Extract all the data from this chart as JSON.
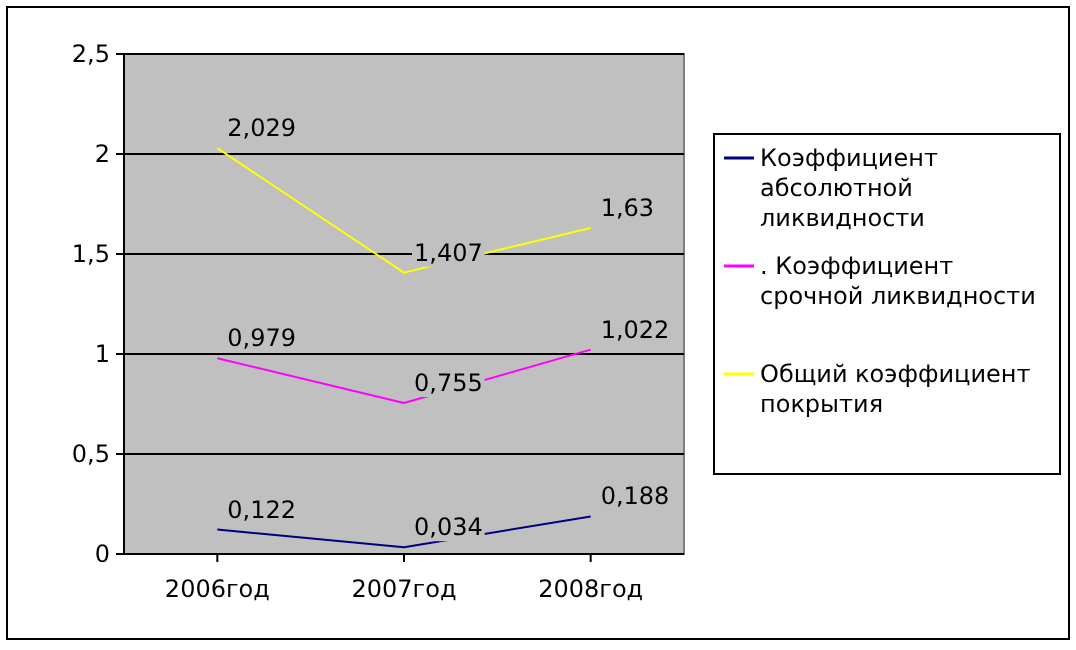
{
  "chart_data": {
    "type": "line",
    "categories": [
      "2006год",
      "2007год",
      "2008год"
    ],
    "series": [
      {
        "name": "Коэффициент абсолютной ликвидности",
        "color": "#000080",
        "values": [
          0.122,
          0.034,
          0.188
        ],
        "value_labels": [
          "0,122",
          "0,034",
          "0,188"
        ]
      },
      {
        "name": ". Коэффициент срочной ликвидности",
        "color": "#ff00ff",
        "values": [
          0.979,
          0.755,
          1.022
        ],
        "value_labels": [
          "0,979",
          "0,755",
          "1,022"
        ]
      },
      {
        "name": "Общий коэффициент покрытия",
        "color": "#ffff00",
        "values": [
          2.029,
          1.407,
          1.63
        ],
        "value_labels": [
          "2,029",
          "1,407",
          "1,63"
        ]
      }
    ],
    "ylim": [
      0,
      2.5
    ],
    "yticks": [
      0,
      {
        "value": 0.5,
        "label": "0,5"
      },
      1,
      {
        "value": 1.5,
        "label": "1,5"
      },
      2,
      {
        "value": 2.5,
        "label": "2,5"
      }
    ],
    "grid": "y",
    "legend": "right",
    "marker": "none",
    "line_style": "solid"
  }
}
